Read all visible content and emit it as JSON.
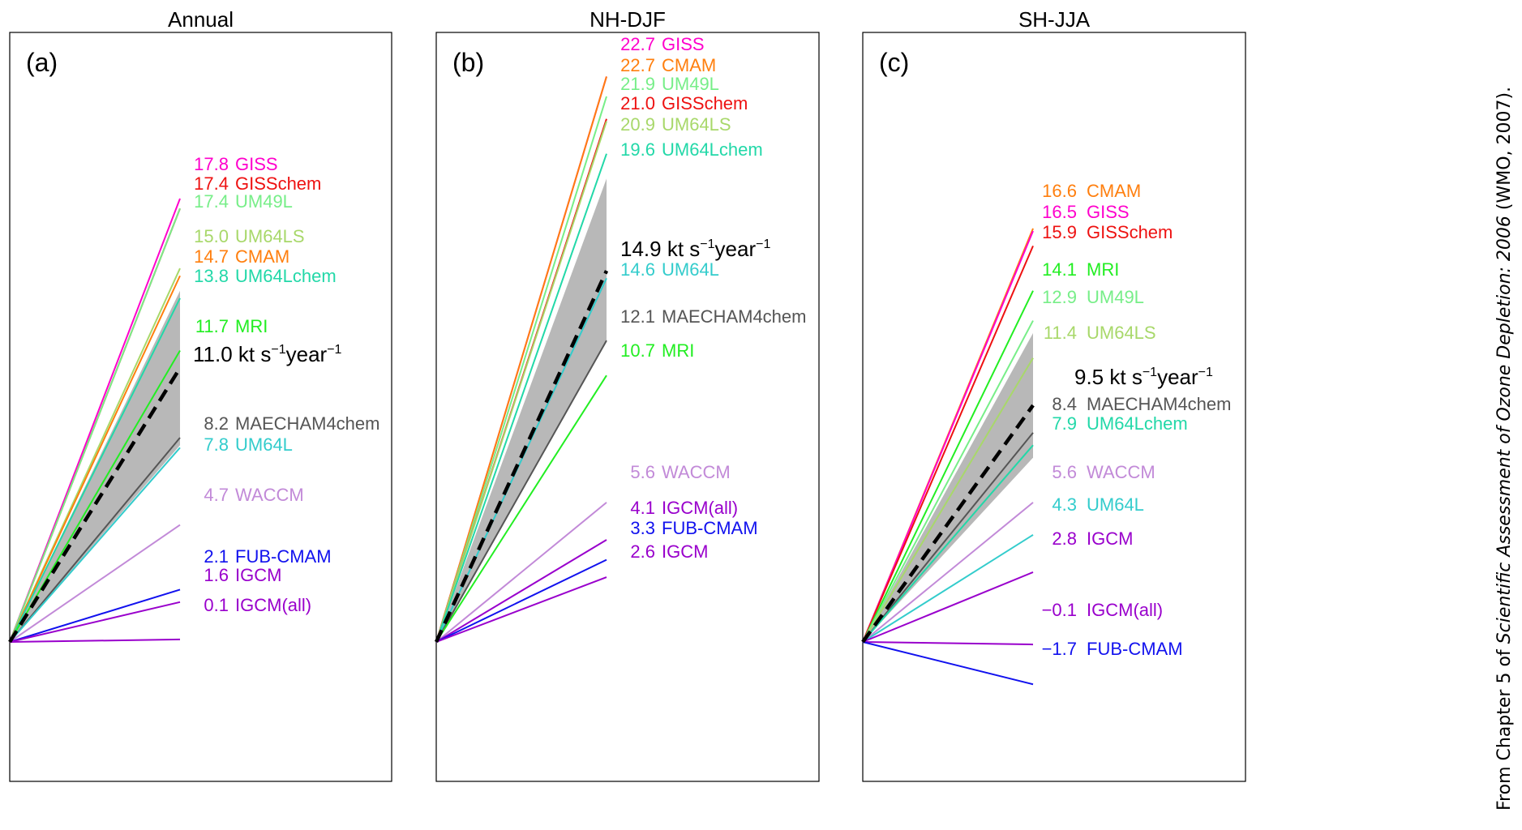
{
  "credit": {
    "prefix": "From Chapter 5 of ",
    "italic": "Scientific Assessment of Ozone Depletion: 2006",
    "suffix": " (WMO, 2007)."
  },
  "colors": {
    "GISS": "#ff00cc",
    "GISSchem": "#ee1111",
    "UM49L": "#77ee88",
    "UM64LS": "#a8d86a",
    "CMAM": "#ff7f0e",
    "UM64Lchem": "#22d8a8",
    "MRI": "#22ee22",
    "MAECHAM4chem": "#555555",
    "UM64L": "#33cccc",
    "WACCM": "#c28ad8",
    "FUB-CMAM": "#1111ee",
    "IGCM": "#9900cc",
    "IGCM(all)": "#9900cc",
    "mean": "#000000",
    "band": "#b8b8b8"
  },
  "chart_data": [
    {
      "type": "line",
      "title": "Annual",
      "panel_label": "(a)",
      "units": "kt s⁻¹year⁻¹",
      "ylim": [
        -2.5,
        28
      ],
      "mean": {
        "value": 11.0,
        "text": "11.0 kt s",
        "sup1": "−1",
        "mid": "year",
        "sup2": "−1",
        "band": [
          7.9,
          14.1
        ]
      },
      "series": [
        {
          "name": "GISS",
          "value": 17.8,
          "text": "17.8"
        },
        {
          "name": "GISSchem",
          "value": 17.4,
          "text": "17.4"
        },
        {
          "name": "UM49L",
          "value": 17.4,
          "text": "17.4"
        },
        {
          "name": "UM64LS",
          "value": 15.0,
          "text": "15.0"
        },
        {
          "name": "CMAM",
          "value": 14.7,
          "text": "14.7"
        },
        {
          "name": "UM64Lchem",
          "value": 13.8,
          "text": "13.8"
        },
        {
          "name": "MRI",
          "value": 11.7,
          "text": "11.7"
        },
        {
          "name": "MAECHAM4chem",
          "value": 8.2,
          "text": "8.2"
        },
        {
          "name": "UM64L",
          "value": 7.8,
          "text": "7.8"
        },
        {
          "name": "WACCM",
          "value": 4.7,
          "text": "4.7"
        },
        {
          "name": "FUB-CMAM",
          "value": 2.1,
          "text": "2.1"
        },
        {
          "name": "IGCM",
          "value": 1.6,
          "text": "1.6"
        },
        {
          "name": "IGCM(all)",
          "value": 0.1,
          "text": "0.1"
        }
      ]
    },
    {
      "type": "line",
      "title": "NH-DJF",
      "panel_label": "(b)",
      "units": "kt s⁻¹year⁻¹",
      "ylim": [
        -2.5,
        28
      ],
      "mean": {
        "value": 14.9,
        "text": "14.9 kt s",
        "sup1": "−1",
        "mid": "year",
        "sup2": "−1",
        "band": [
          12.1,
          18.6
        ]
      },
      "series": [
        {
          "name": "GISS",
          "value": 22.7,
          "text": "22.7"
        },
        {
          "name": "CMAM",
          "value": 22.7,
          "text": "22.7"
        },
        {
          "name": "UM49L",
          "value": 21.9,
          "text": "21.9"
        },
        {
          "name": "GISSchem",
          "value": 21.0,
          "text": "21.0"
        },
        {
          "name": "UM64LS",
          "value": 20.9,
          "text": "20.9"
        },
        {
          "name": "UM64Lchem",
          "value": 19.6,
          "text": "19.6"
        },
        {
          "name": "UM64L",
          "value": 14.6,
          "text": "14.6"
        },
        {
          "name": "MAECHAM4chem",
          "value": 12.1,
          "text": "12.1"
        },
        {
          "name": "MRI",
          "value": 10.7,
          "text": "10.7"
        },
        {
          "name": "WACCM",
          "value": 5.6,
          "text": "5.6"
        },
        {
          "name": "IGCM(all)",
          "value": 4.1,
          "text": "4.1"
        },
        {
          "name": "FUB-CMAM",
          "value": 3.3,
          "text": "3.3"
        },
        {
          "name": "IGCM",
          "value": 2.6,
          "text": "2.6"
        }
      ]
    },
    {
      "type": "line",
      "title": "SH-JJA",
      "panel_label": "(c)",
      "units": "kt s⁻¹year⁻¹",
      "ylim": [
        -2.5,
        28
      ],
      "mean": {
        "value": 9.5,
        "text": "9.5 kt s",
        "sup1": "−1",
        "mid": "year",
        "sup2": "−1",
        "band": [
          7.4,
          12.4
        ]
      },
      "series": [
        {
          "name": "CMAM",
          "value": 16.6,
          "text": "16.6"
        },
        {
          "name": "GISS",
          "value": 16.5,
          "text": "16.5"
        },
        {
          "name": "GISSchem",
          "value": 15.9,
          "text": "15.9"
        },
        {
          "name": "MRI",
          "value": 14.1,
          "text": "14.1"
        },
        {
          "name": "UM49L",
          "value": 12.9,
          "text": "12.9"
        },
        {
          "name": "UM64LS",
          "value": 11.4,
          "text": "11.4"
        },
        {
          "name": "MAECHAM4chem",
          "value": 8.4,
          "text": "8.4"
        },
        {
          "name": "UM64Lchem",
          "value": 7.9,
          "text": "7.9"
        },
        {
          "name": "WACCM",
          "value": 5.6,
          "text": "5.6"
        },
        {
          "name": "UM64L",
          "value": 4.3,
          "text": "4.3"
        },
        {
          "name": "IGCM",
          "value": 2.8,
          "text": "2.8"
        },
        {
          "name": "IGCM(all)",
          "value": -0.1,
          "text": "−0.1"
        },
        {
          "name": "FUB-CMAM",
          "value": -1.7,
          "text": "−1.7"
        }
      ]
    }
  ]
}
